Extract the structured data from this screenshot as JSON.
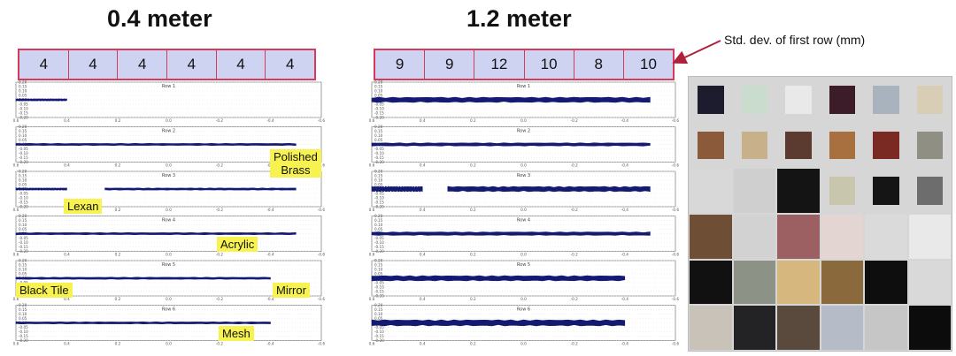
{
  "titles": {
    "left": "0.4 meter",
    "right": "1.2 meter"
  },
  "std_dev": {
    "left": [
      "4",
      "4",
      "4",
      "4",
      "4",
      "4"
    ],
    "right": [
      "9",
      "9",
      "12",
      "10",
      "8",
      "10"
    ],
    "annotation": "Std. dev. of first row (mm)"
  },
  "labels": {
    "polished": "Polished",
    "brass": "Brass",
    "lexan": "Lexan",
    "acrylic": "Acrylic",
    "black_tile": "Black Tile",
    "mirror": "Mirror",
    "mesh": "Mesh"
  },
  "chart_data": [
    {
      "type": "line",
      "panel": "0.4 meter",
      "x_ticks": [
        "0.6",
        "0.4",
        "0.2",
        "0.0",
        "-0.2",
        "-0.4",
        "-0.6"
      ],
      "y_ticks": [
        "0.20",
        "0.15",
        "0.10",
        "0.05",
        "0.00",
        "-0.05",
        "-0.10",
        "-0.15",
        "-0.20"
      ],
      "xlim": [
        0.6,
        -0.6
      ],
      "ylim": [
        -0.2,
        0.2
      ],
      "grid": true,
      "series": [
        {
          "name": "Row 1",
          "segments": [
            [
              0.6,
              0.4
            ]
          ],
          "spread": 0.01
        },
        {
          "name": "Row 2",
          "segments": [
            [
              0.6,
              -0.5
            ]
          ],
          "spread": 0.008
        },
        {
          "name": "Row 3",
          "segments": [
            [
              0.6,
              0.4
            ],
            [
              0.25,
              -0.5
            ]
          ],
          "spread": 0.006
        },
        {
          "name": "Row 4",
          "segments": [
            [
              0.6,
              -0.5
            ]
          ],
          "spread": 0.008
        },
        {
          "name": "Row 5",
          "segments": [
            [
              0.6,
              -0.4
            ]
          ],
          "spread": 0.005
        },
        {
          "name": "Row 6",
          "segments": [
            [
              0.6,
              -0.4
            ]
          ],
          "spread": 0.008
        }
      ]
    },
    {
      "type": "line",
      "panel": "1.2 meter",
      "x_ticks": [
        "0.6",
        "0.4",
        "0.2",
        "0.0",
        "-0.2",
        "-0.4",
        "-0.6"
      ],
      "y_ticks": [
        "0.20",
        "0.15",
        "0.10",
        "0.05",
        "0.00",
        "-0.05",
        "-0.10",
        "-0.15",
        "-0.20"
      ],
      "xlim": [
        0.6,
        -0.6
      ],
      "ylim": [
        -0.2,
        0.2
      ],
      "grid": true,
      "series": [
        {
          "name": "Row 1",
          "segments": [
            [
              0.6,
              -0.5
            ]
          ],
          "spread": 0.03
        },
        {
          "name": "Row 2",
          "segments": [
            [
              0.6,
              -0.5
            ]
          ],
          "spread": 0.018
        },
        {
          "name": "Row 3",
          "segments": [
            [
              0.6,
              0.4
            ],
            [
              0.3,
              -0.5
            ]
          ],
          "spread": 0.03
        },
        {
          "name": "Row 4",
          "segments": [
            [
              0.6,
              -0.5
            ]
          ],
          "spread": 0.02
        },
        {
          "name": "Row 5",
          "segments": [
            [
              0.6,
              -0.4
            ]
          ],
          "spread": 0.03
        },
        {
          "name": "Row 6",
          "segments": [
            [
              0.6,
              -0.4
            ]
          ],
          "spread": 0.035
        }
      ]
    }
  ],
  "materials_photo": {
    "tile_colors": [
      [
        "#1c1c2e",
        "#c9dccd",
        "#e9e9e9",
        "#3b1c28",
        "#a9b3bd",
        "#d8cdb5"
      ],
      [
        "#8a5a3a",
        "#c8b08a",
        "#5b3a30",
        "#a8703e",
        "#7a2a22",
        "#8f8f84"
      ],
      [
        "#d8d8d8",
        "#cfcfcf",
        "#141414",
        "#c8c6ad",
        "#151515",
        "#6d6d6d"
      ],
      [
        "#6e4e34",
        "#d2d2d2",
        "#9c6062",
        "#e3d5d2",
        "#dadada",
        "#e9e9e9"
      ],
      [
        "#111111",
        "#8d9287",
        "#d6b77e",
        "#8a6a3c",
        "#0e0e0e",
        "#d9d9d9"
      ],
      [
        "#c8c2b8",
        "#232326",
        "#5a4a3e",
        "#b5bcc8",
        "#c6c6c6",
        "#0c0c0c"
      ]
    ]
  }
}
